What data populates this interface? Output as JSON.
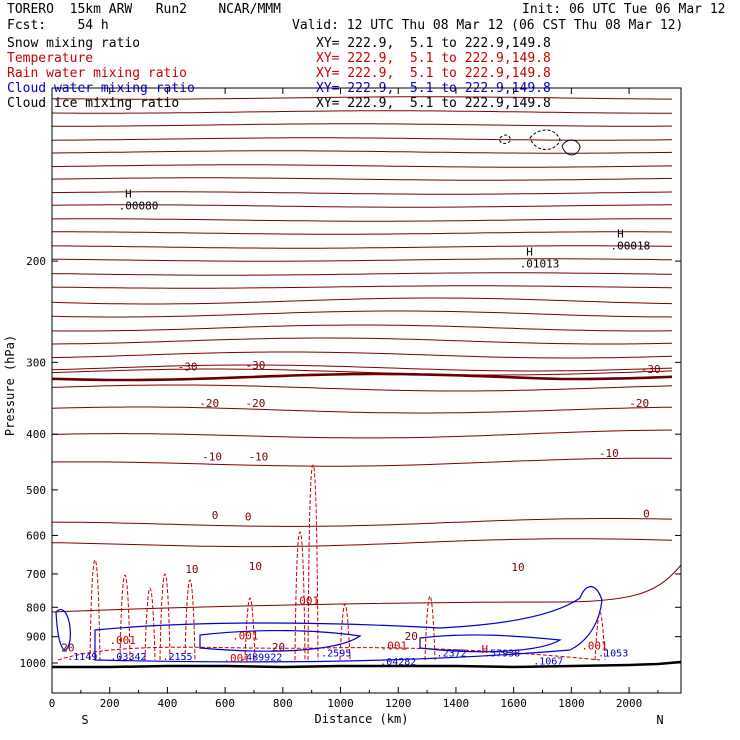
{
  "header": {
    "model": "TORERO  15km ARW   Run2    NCAR/MMM",
    "init": "Init: 06 UTC Tue 06 Mar 12",
    "fcst": "Fcst:    54 h",
    "valid": "Valid: 12 UTC Thu 08 Mar 12 (06 CST Thu 08 Mar 12)"
  },
  "legend": [
    {
      "label": "Snow mixing ratio",
      "xy": "XY= 222.9,  5.1 to 222.9,149.8",
      "color": "#000000"
    },
    {
      "label": "Temperature",
      "xy": "XY= 222.9,  5.1 to 222.9,149.8",
      "color": "#cc0000"
    },
    {
      "label": "Rain water mixing ratio",
      "xy": "XY= 222.9,  5.1 to 222.9,149.8",
      "color": "#cc0000"
    },
    {
      "label": "Cloud water mixing ratio",
      "xy": "XY= 222.9,  5.1 to 222.9,149.8",
      "color": "#0000cc"
    },
    {
      "label": "Cloud ice mixing ratio",
      "xy": "XY= 222.9,  5.1 to 222.9,149.8",
      "color": "#000000"
    }
  ],
  "chart_data": {
    "type": "cross-section contour",
    "xlabel": "Distance (km)",
    "ylabel": "Pressure (hPa)",
    "xlim": [
      0,
      2180
    ],
    "ylim_log_pressure": [
      1050,
      100
    ],
    "x_ticks": [
      0,
      200,
      400,
      600,
      800,
      1000,
      1200,
      1400,
      1600,
      1800,
      2000
    ],
    "y_ticks": [
      200,
      300,
      400,
      500,
      600,
      700,
      800,
      900,
      1000
    ],
    "endpoints": {
      "left": "S",
      "right": "N"
    },
    "temperature_isotherm_labels": [
      {
        "text": "-30",
        "x": 470,
        "p": 305
      },
      {
        "text": "-30",
        "x": 705,
        "p": 303
      },
      {
        "text": "-30",
        "x": 2075,
        "p": 308
      },
      {
        "text": "-20",
        "x": 545,
        "p": 353
      },
      {
        "text": "-20",
        "x": 705,
        "p": 353
      },
      {
        "text": "-20",
        "x": 2035,
        "p": 353
      },
      {
        "text": "-10",
        "x": 555,
        "p": 437
      },
      {
        "text": "-10",
        "x": 715,
        "p": 437
      },
      {
        "text": "-10",
        "x": 1930,
        "p": 431
      },
      {
        "text": "0",
        "x": 565,
        "p": 553
      },
      {
        "text": "0",
        "x": 680,
        "p": 556
      },
      {
        "text": "0",
        "x": 2060,
        "p": 550
      },
      {
        "text": "10",
        "x": 485,
        "p": 686
      },
      {
        "text": "10",
        "x": 705,
        "p": 678
      },
      {
        "text": "10",
        "x": 1615,
        "p": 681
      },
      {
        "text": "20",
        "x": 1245,
        "p": 898
      },
      {
        "text": "20",
        "x": 785,
        "p": 938
      },
      {
        "text": "20",
        "x": 55,
        "p": 940
      }
    ],
    "snow_max_labels": [
      {
        "marker": "H",
        "value": ".00080",
        "x": 265,
        "p": 160
      },
      {
        "marker": "H",
        "value": ".01013",
        "x": 1655,
        "p": 202
      },
      {
        "marker": "H",
        "value": ".00018",
        "x": 1970,
        "p": 188
      }
    ],
    "rain_labels": [
      ".001",
      ".001",
      ".001",
      ".001",
      ".001",
      ".001",
      ".001",
      ".03342",
      ".1149",
      ".57938",
      ".04282",
      ".2155",
      ".2595",
      ".2372",
      ".1053",
      ".1067",
      ".4B9922"
    ],
    "rain_label_points": [
      {
        "value": ".001",
        "x": 880,
        "p": 778
      },
      {
        "value": ".001",
        "x": 670,
        "p": 896
      },
      {
        "value": ".001",
        "x": 245,
        "p": 912
      },
      {
        "value": ".001",
        "x": 640,
        "p": 980
      },
      {
        "value": ".001",
        "x": 1185,
        "p": 933
      },
      {
        "value": ".001",
        "x": 1880,
        "p": 933
      },
      {
        "value": "H",
        "x": 1500,
        "p": 945
      }
    ],
    "cloud_water_labels": [
      {
        "value": ".1149",
        "x": 105,
        "p": 972
      },
      {
        "value": ".03342",
        "x": 265,
        "p": 972
      },
      {
        "value": ".2155",
        "x": 435,
        "p": 972
      },
      {
        "value": ".4B9922",
        "x": 725,
        "p": 975
      },
      {
        "value": ".2595",
        "x": 985,
        "p": 958
      },
      {
        "value": ".2372",
        "x": 1385,
        "p": 958
      },
      {
        "value": ".57938",
        "x": 1560,
        "p": 958
      },
      {
        "value": ".04282",
        "x": 1200,
        "p": 992
      },
      {
        "value": ".1067",
        "x": 1720,
        "p": 990
      },
      {
        "value": ".1053",
        "x": 1945,
        "p": 958
      }
    ]
  }
}
